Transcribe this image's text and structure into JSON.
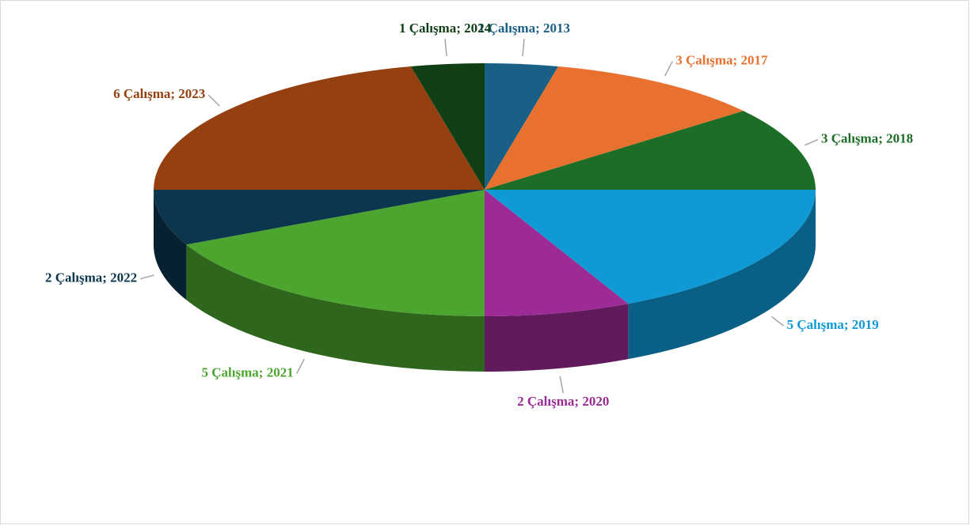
{
  "chart_data": {
    "type": "pie",
    "categories": [
      "2013",
      "2017",
      "2018",
      "2019",
      "2020",
      "2021",
      "2022",
      "2023",
      "2024"
    ],
    "values": [
      1,
      3,
      3,
      5,
      2,
      5,
      2,
      6,
      1
    ],
    "value_labels": [
      "1 Çalışma; 2013",
      "3 Çalışma; 2017",
      "3 Çalışma; 2018",
      "5 Çalışma; 2019",
      "2 Çalışma; 2020",
      "5 Çalışma; 2021",
      "2 Çalışma; 2022",
      "6 Çalışma; 2023",
      "1 Çalışma; 2024"
    ],
    "colors": [
      "#1a5f85",
      "#e87130",
      "#1c6e26",
      "#0f9ad6",
      "#9c2b95",
      "#4ca52f",
      "#0c364d",
      "#954010",
      "#103f16"
    ]
  }
}
